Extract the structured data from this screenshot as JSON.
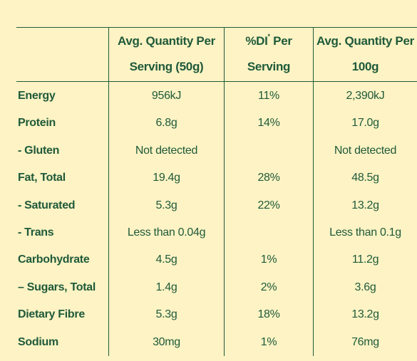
{
  "header": {
    "col1_line1": "Avg. Quantity Per",
    "col1_line2": "Serving (50g)",
    "col2_line1_prefix": "%DI",
    "col2_line1_sup": "*",
    "col2_line1_suffix": " Per",
    "col2_line2": "Serving",
    "col3_line1": "Avg. Quantity Per",
    "col3_line2": "100g"
  },
  "rows": [
    {
      "label": "Energy",
      "per_serving": "956kJ",
      "di": "11%",
      "per_100g": "2,390kJ"
    },
    {
      "label": "Protein",
      "per_serving": "6.8g",
      "di": "14%",
      "per_100g": "17.0g"
    },
    {
      "label": "- Gluten",
      "per_serving": "Not detected",
      "di": "",
      "per_100g": "Not detected"
    },
    {
      "label": "Fat, Total",
      "per_serving": "19.4g",
      "di": "28%",
      "per_100g": "48.5g"
    },
    {
      "label": "- Saturated",
      "per_serving": "5.3g",
      "di": "22%",
      "per_100g": "13.2g"
    },
    {
      "label": "- Trans",
      "per_serving": "Less than 0.04g",
      "di": "",
      "per_100g": "Less than 0.1g"
    },
    {
      "label": "Carbohydrate",
      "per_serving": "4.5g",
      "di": "1%",
      "per_100g": "11.2g"
    },
    {
      "label": "– Sugars, Total",
      "per_serving": "1.4g",
      "di": "2%",
      "per_100g": "3.6g"
    },
    {
      "label": "Dietary Fibre",
      "per_serving": "5.3g",
      "di": "18%",
      "per_100g": "13.2g"
    },
    {
      "label": "Sodium",
      "per_serving": "30mg",
      "di": "1%",
      "per_100g": "76mg"
    }
  ],
  "colors": {
    "background": "#fdf3c4",
    "text": "#1f5a3a"
  }
}
